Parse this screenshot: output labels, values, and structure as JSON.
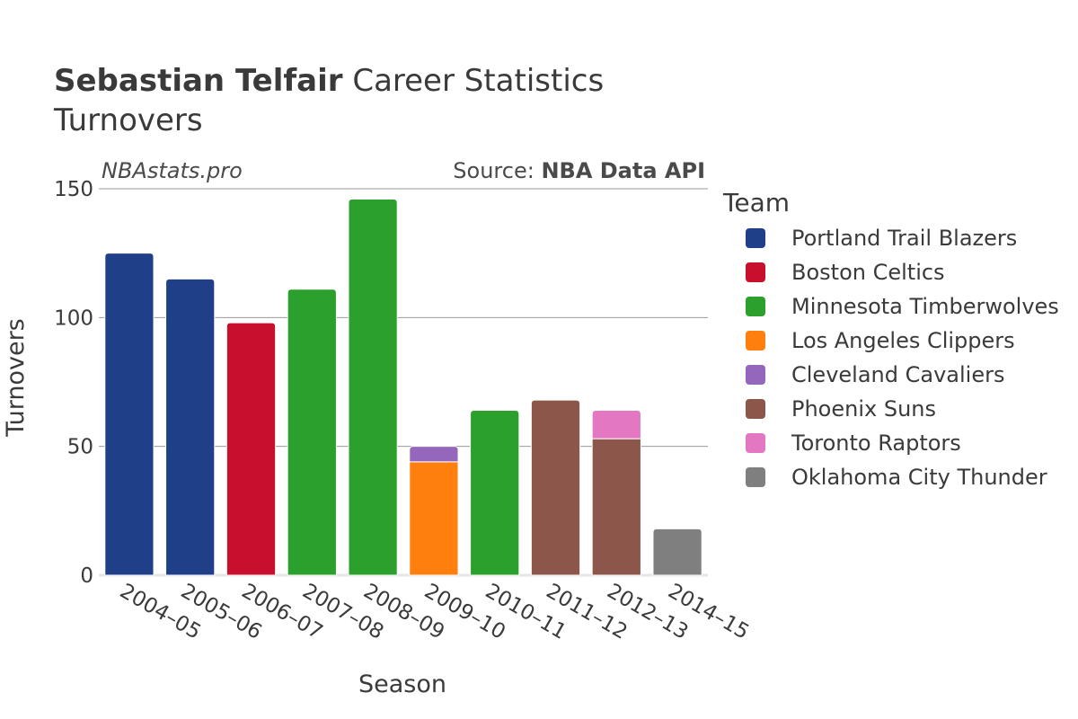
{
  "header": {
    "player_name": "Sebastian Telfair",
    "title_suffix": " Career Statistics",
    "subtitle": "Turnovers",
    "watermark": "NBAstats.pro",
    "source_prefix": "Source: ",
    "source_name": "NBA Data API"
  },
  "legend": {
    "title": "Team",
    "items": [
      {
        "label": "Portland Trail Blazers",
        "color": "#1f4088"
      },
      {
        "label": "Boston Celtics",
        "color": "#c8102e"
      },
      {
        "label": "Minnesota Timberwolves",
        "color": "#2ca02c"
      },
      {
        "label": "Los Angeles Clippers",
        "color": "#ff7f0e"
      },
      {
        "label": "Cleveland Cavaliers",
        "color": "#9467bd"
      },
      {
        "label": "Phoenix Suns",
        "color": "#8c564b"
      },
      {
        "label": "Toronto Raptors",
        "color": "#e377c2"
      },
      {
        "label": "Oklahoma City Thunder",
        "color": "#7f7f7f"
      }
    ]
  },
  "chart_data": {
    "type": "bar",
    "stacked": true,
    "xlabel": "Season",
    "ylabel": "Turnovers",
    "ylim": [
      0,
      150
    ],
    "yticks": [
      0,
      50,
      100,
      150
    ],
    "grid": true,
    "legend_placement": "right",
    "categories": [
      "2004–05",
      "2005–06",
      "2006–07",
      "2007–08",
      "2008–09",
      "2009–10",
      "2010–11",
      "2011–12",
      "2012–13",
      "2014–15"
    ],
    "bars": [
      {
        "season": "2004–05",
        "segments": [
          {
            "team": "Portland Trail Blazers",
            "value": 125
          }
        ]
      },
      {
        "season": "2005–06",
        "segments": [
          {
            "team": "Portland Trail Blazers",
            "value": 115
          }
        ]
      },
      {
        "season": "2006–07",
        "segments": [
          {
            "team": "Boston Celtics",
            "value": 98
          }
        ]
      },
      {
        "season": "2007–08",
        "segments": [
          {
            "team": "Minnesota Timberwolves",
            "value": 111
          }
        ]
      },
      {
        "season": "2008–09",
        "segments": [
          {
            "team": "Minnesota Timberwolves",
            "value": 146
          }
        ]
      },
      {
        "season": "2009–10",
        "segments": [
          {
            "team": "Los Angeles Clippers",
            "value": 44
          },
          {
            "team": "Cleveland Cavaliers",
            "value": 6
          }
        ]
      },
      {
        "season": "2010–11",
        "segments": [
          {
            "team": "Minnesota Timberwolves",
            "value": 64
          }
        ]
      },
      {
        "season": "2011–12",
        "segments": [
          {
            "team": "Phoenix Suns",
            "value": 68
          }
        ]
      },
      {
        "season": "2012–13",
        "segments": [
          {
            "team": "Phoenix Suns",
            "value": 53
          },
          {
            "team": "Toronto Raptors",
            "value": 11
          }
        ]
      },
      {
        "season": "2014–15",
        "segments": [
          {
            "team": "Oklahoma City Thunder",
            "value": 18
          }
        ]
      }
    ]
  }
}
